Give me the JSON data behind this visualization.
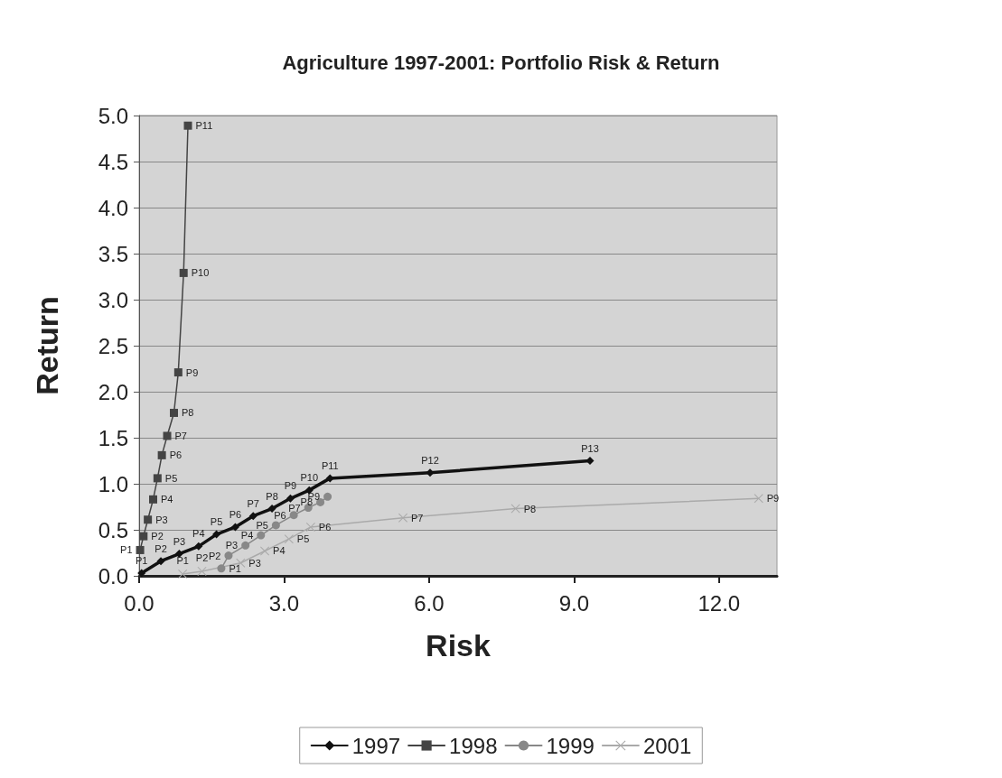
{
  "chart_data": {
    "type": "line",
    "title": "Agriculture 1997-2001: Portfolio Risk & Return",
    "xlabel": "Risk",
    "ylabel": "Return",
    "xlim": [
      0,
      13.2
    ],
    "xticks": [
      {
        "value": 0,
        "label": "0.0"
      },
      {
        "value": 3,
        "label": "3.0"
      },
      {
        "value": 6,
        "label": "6.0"
      },
      {
        "value": 9,
        "label": "9.0"
      },
      {
        "value": 12,
        "label": "12.0"
      }
    ],
    "ylim": [
      0,
      5
    ],
    "yticks": [
      {
        "value": 0,
        "label": "0.0"
      },
      {
        "value": 0.5,
        "label": "0.5"
      },
      {
        "value": 1,
        "label": "1.0"
      },
      {
        "value": 1.5,
        "label": "1.5"
      },
      {
        "value": 2,
        "label": "2.0"
      },
      {
        "value": 2.5,
        "label": "2.5"
      },
      {
        "value": 3,
        "label": "3.0"
      },
      {
        "value": 3.5,
        "label": "3.5"
      },
      {
        "value": 4,
        "label": "4.0"
      },
      {
        "value": 4.5,
        "label": "4.5"
      },
      {
        "value": 5,
        "label": "5.0"
      }
    ],
    "grid": "y",
    "legend": "bottom",
    "series": [
      {
        "name": "1997",
        "color": "#111111",
        "marker": "diamond",
        "x": [
          0.05,
          0.45,
          0.83,
          1.23,
          1.6,
          1.99,
          2.36,
          2.75,
          3.13,
          3.52,
          3.95,
          6.02,
          9.33
        ],
        "values": [
          0.03,
          0.16,
          0.24,
          0.32,
          0.45,
          0.53,
          0.65,
          0.73,
          0.84,
          0.93,
          1.06,
          1.12,
          1.25
        ],
        "value_labels": [
          "P1",
          "P2",
          "P3",
          "P4",
          "P5",
          "P6",
          "P7",
          "P8",
          "P9",
          "P10",
          "P11",
          "P12",
          "P13"
        ]
      },
      {
        "name": "1998",
        "color": "#444444",
        "marker": "square",
        "x": [
          0.02,
          0.09,
          0.18,
          0.29,
          0.38,
          0.47,
          0.58,
          0.72,
          0.81,
          0.92,
          1.01
        ],
        "values": [
          0.28,
          0.43,
          0.61,
          0.83,
          1.06,
          1.31,
          1.52,
          1.77,
          2.21,
          3.29,
          4.89
        ],
        "value_labels": [
          "P1",
          "P2",
          "P3",
          "P4",
          "P5",
          "P6",
          "P7",
          "P8",
          "P9",
          "P10",
          "P11"
        ]
      },
      {
        "name": "1999",
        "color": "#888888",
        "marker": "circle",
        "x": [
          1.7,
          1.85,
          2.2,
          2.52,
          2.83,
          3.2,
          3.5,
          3.75,
          3.9
        ],
        "values": [
          0.08,
          0.22,
          0.33,
          0.44,
          0.55,
          0.66,
          0.74,
          0.8,
          0.86
        ],
        "value_labels": [
          "P1",
          "P2",
          "P3",
          "P4",
          "P5",
          "P6",
          "P7",
          "P8",
          "P9"
        ]
      },
      {
        "name": "2001",
        "color": "#aaaaaa",
        "marker": "cross",
        "x": [
          0.9,
          1.3,
          2.1,
          2.6,
          3.1,
          3.55,
          5.46,
          7.79,
          12.82
        ],
        "values": [
          0.02,
          0.05,
          0.14,
          0.27,
          0.4,
          0.53,
          0.63,
          0.73,
          0.84
        ],
        "value_labels": [
          "P1",
          "P2",
          "P3",
          "P4",
          "P5",
          "P6",
          "P7",
          "P8",
          "P9"
        ]
      }
    ]
  }
}
